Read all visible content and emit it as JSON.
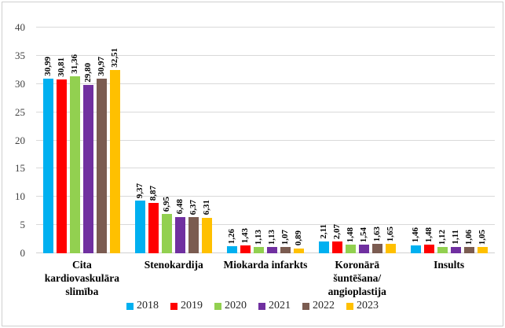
{
  "chart_data": {
    "type": "bar",
    "categories": [
      {
        "label": "Cita kardiovaskulāra slimība",
        "display": "Cita kardiovaskulāra\nslimība"
      },
      {
        "label": "Stenokardija",
        "display": "Stenokardija"
      },
      {
        "label": "Miokarda infarkts",
        "display": "Miokarda infarkts"
      },
      {
        "label": "Koronārā šuntēšana/ angioplastija",
        "display": "Koronārā šuntēšana/\nangioplastija"
      },
      {
        "label": "Insults",
        "display": "Insults"
      }
    ],
    "series": [
      {
        "name": "2018",
        "color": "#00B0F0",
        "values": [
          30.99,
          9.37,
          1.26,
          2.11,
          1.46
        ]
      },
      {
        "name": "2019",
        "color": "#FF0000",
        "values": [
          30.81,
          8.87,
          1.43,
          2.07,
          1.48
        ]
      },
      {
        "name": "2020",
        "color": "#92D050",
        "values": [
          31.36,
          6.95,
          1.13,
          1.48,
          1.12
        ]
      },
      {
        "name": "2021",
        "color": "#7030A0",
        "values": [
          29.8,
          6.48,
          1.13,
          1.54,
          1.11
        ]
      },
      {
        "name": "2022",
        "color": "#7B5C51",
        "values": [
          30.97,
          6.37,
          1.07,
          1.63,
          1.06
        ]
      },
      {
        "name": "2023",
        "color": "#FFC000",
        "values": [
          32.51,
          6.31,
          0.89,
          1.65,
          1.05
        ]
      }
    ],
    "title": "",
    "xlabel": "",
    "ylabel": "",
    "ylim": [
      0,
      40
    ],
    "ytick_step": 5,
    "yticks": [
      "0",
      "5",
      "10",
      "15",
      "20",
      "25",
      "30",
      "35",
      "40"
    ],
    "grid": true,
    "legend_position": "bottom",
    "decimal_separator": ",",
    "value_label_decimals": 2
  },
  "colors": {
    "gridline": "#d9d9d9",
    "axis_line": "#d0d0d0",
    "figure_border": "#cfcfcf",
    "tick_text": "#404040",
    "label_text": "#000000"
  }
}
